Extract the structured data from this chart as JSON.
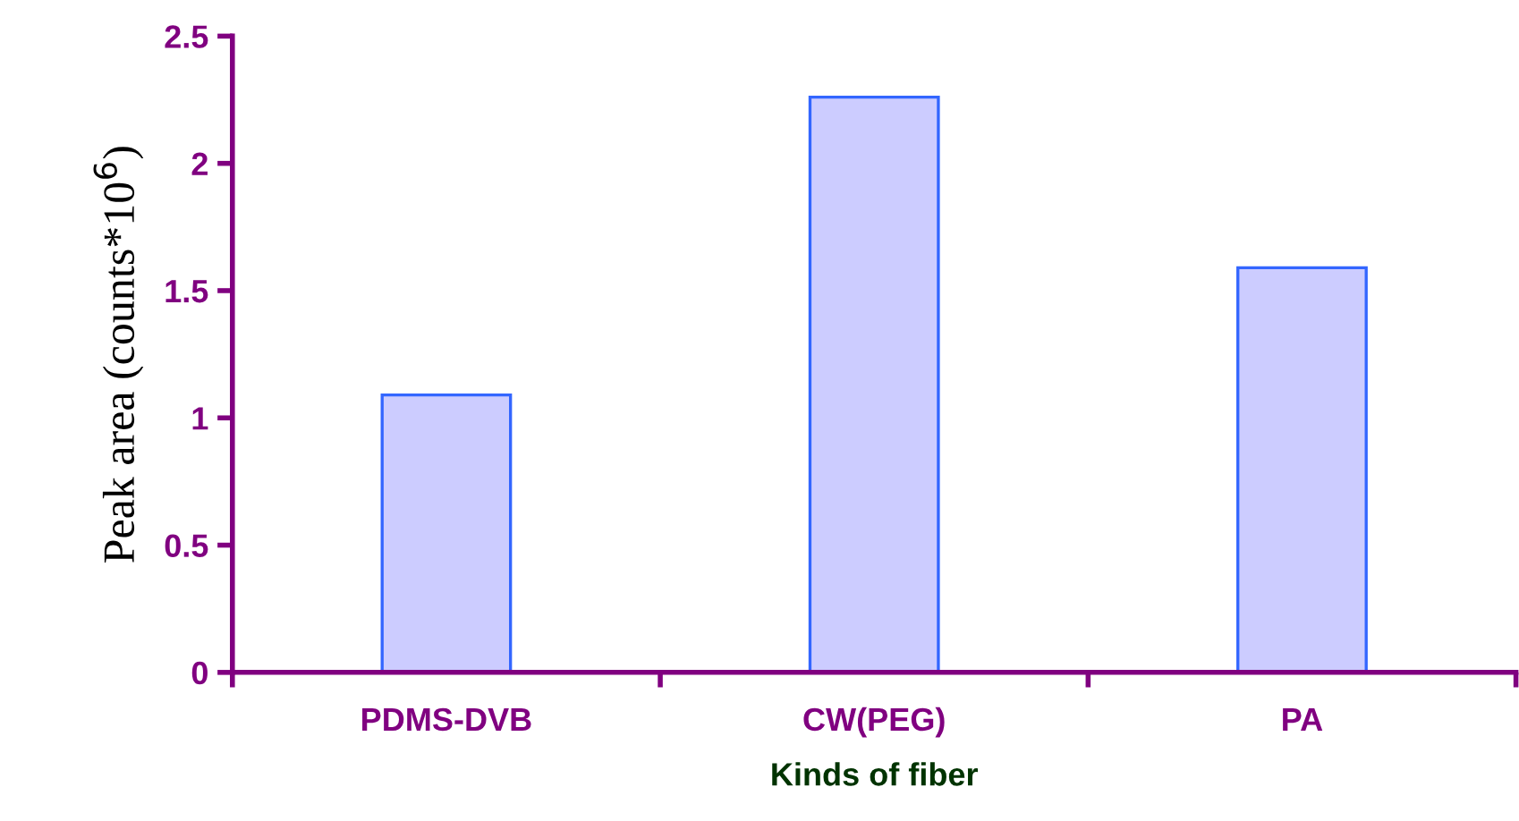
{
  "chart_data": {
    "type": "bar",
    "xlabel": "Kinds of fiber",
    "ylabel": "Peak area (counts*10$^{6}$)",
    "categories": [
      "PDMS-DVB",
      "CW(PEG)",
      "PA"
    ],
    "values": [
      1.09,
      2.26,
      1.59
    ],
    "color": "#ccccff",
    "ylim": [
      0,
      2.5
    ],
    "yticks": [
      0,
      0.5,
      1,
      1.5,
      2,
      2.5
    ],
    "grid": false,
    "legend": false
  }
}
